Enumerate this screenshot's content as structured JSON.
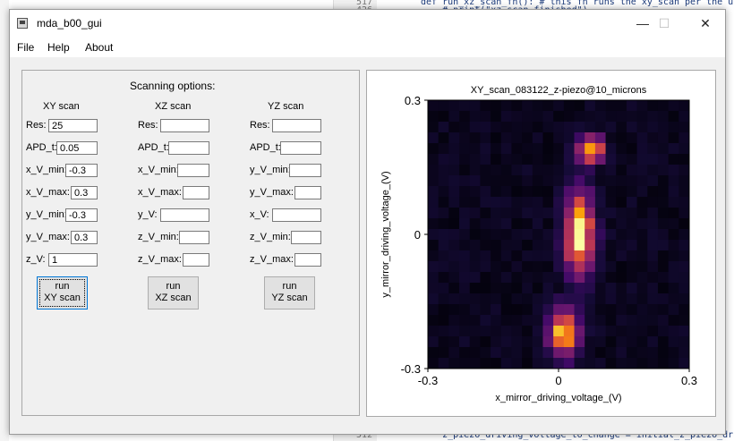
{
  "window": {
    "title": "mda_b00_gui",
    "controls": {
      "minimize": "—",
      "maximize": "☐",
      "close": "✕"
    }
  },
  "menu": [
    "File",
    "Help",
    "About"
  ],
  "scan_panel": {
    "heading": "Scanning options:",
    "columns": [
      {
        "title": "XY scan",
        "fields": [
          {
            "label": "Res:",
            "value": "25"
          },
          {
            "label": "APD_t:",
            "value": "0.05"
          },
          {
            "label": "x_V_min:",
            "value": "-0.3"
          },
          {
            "label": "x_V_max:",
            "value": "0.3"
          },
          {
            "label": "y_V_min:",
            "value": "-0.3"
          },
          {
            "label": "y_V_max:",
            "value": "0.3"
          },
          {
            "label": "z_V:",
            "value": "1"
          }
        ],
        "button": {
          "line1": "run",
          "line2": "XY scan"
        }
      },
      {
        "title": "XZ scan",
        "fields": [
          {
            "label": "Res:",
            "value": ""
          },
          {
            "label": "APD_t:",
            "value": ""
          },
          {
            "label": "x_V_min:",
            "value": ""
          },
          {
            "label": "x_V_max:",
            "value": ""
          },
          {
            "label": "y_V:",
            "value": ""
          },
          {
            "label": "z_V_min:",
            "value": ""
          },
          {
            "label": "z_V_max:",
            "value": ""
          }
        ],
        "button": {
          "line1": "run",
          "line2": "XZ scan"
        }
      },
      {
        "title": "YZ scan",
        "fields": [
          {
            "label": "Res:",
            "value": ""
          },
          {
            "label": "APD_t:",
            "value": ""
          },
          {
            "label": "y_V_min:",
            "value": ""
          },
          {
            "label": "y_V_max:",
            "value": ""
          },
          {
            "label": "x_V:",
            "value": ""
          },
          {
            "label": "z_V_min:",
            "value": ""
          },
          {
            "label": "z_V_max:",
            "value": ""
          }
        ],
        "button": {
          "line1": "run",
          "line2": "YZ scan"
        }
      }
    ]
  },
  "chart_data": {
    "type": "heatmap",
    "title": "XY_scan_083122_z-piezo@10_microns",
    "xlabel": "x_mirror_driving_voltage_(V)",
    "ylabel": "y_mirror_driving_voltage_(V)",
    "xlim": [
      -0.3,
      0.3
    ],
    "ylim": [
      -0.3,
      0.3
    ],
    "xticks": [
      "-0.3",
      "0",
      "0.3"
    ],
    "yticks": [
      "0.3",
      "0",
      "-0.3"
    ],
    "resolution": 25,
    "colormap": "inferno",
    "hotspots": [
      {
        "x": 0.072,
        "y": 0.19,
        "intensity": 0.95,
        "sx": 0.02,
        "sy": 0.02
      },
      {
        "x": 0.048,
        "y": 0.0,
        "intensity": 1.0,
        "sx": 0.022,
        "sy": 0.06
      },
      {
        "x": 0.012,
        "y": -0.22,
        "intensity": 0.9,
        "sx": 0.022,
        "sy": 0.035
      }
    ]
  },
  "background_code": {
    "lines": [
      {
        "num": "517",
        "text": "def run_xz_scan_fn(): # this fn runs the xy_scan per the user s"
      },
      {
        "num": "426",
        "text": "    # print(\"xz scan finished\")"
      },
      {
        "num": "512",
        "text": "    z_piezo_driving_voltage_to_change = initial_z_piezo_driving_v"
      }
    ]
  }
}
